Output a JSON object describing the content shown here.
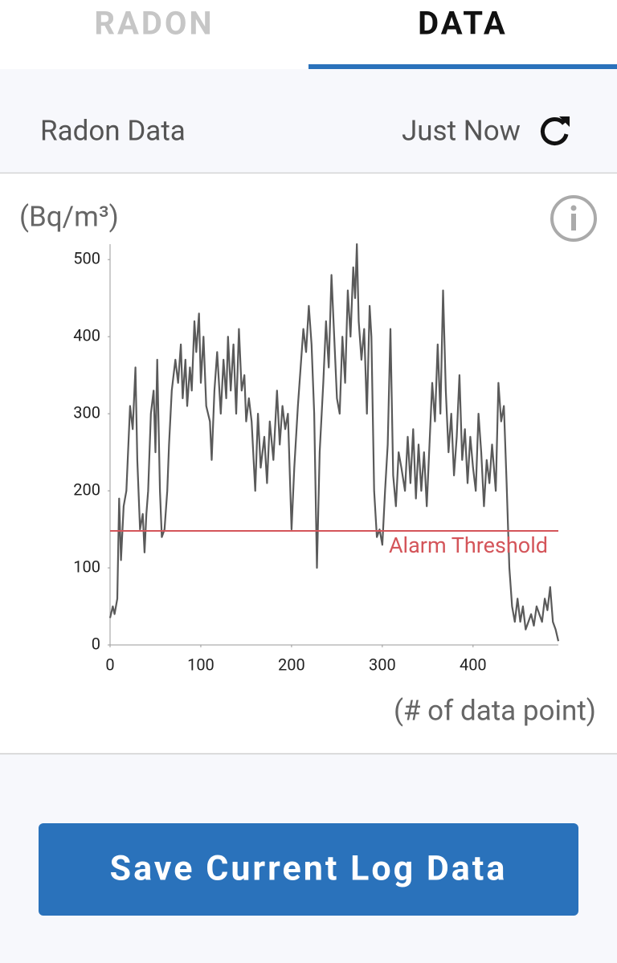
{
  "tabs": [
    "RADON",
    "DATA"
  ],
  "header": {
    "title": "Radon Data",
    "updated": "Just Now"
  },
  "chart_data": {
    "type": "line",
    "y_label": "(Bq/m³)",
    "x_label": "(# of data point)",
    "x": [
      0,
      3,
      5,
      8,
      10,
      12,
      15,
      18,
      22,
      25,
      28,
      30,
      33,
      36,
      38,
      40,
      42,
      45,
      48,
      50,
      52,
      55,
      57,
      60,
      63,
      65,
      68,
      72,
      75,
      78,
      80,
      83,
      85,
      88,
      90,
      93,
      95,
      98,
      100,
      103,
      106,
      110,
      112,
      115,
      118,
      122,
      125,
      128,
      130,
      133,
      136,
      139,
      142,
      145,
      148,
      150,
      153,
      156,
      160,
      163,
      166,
      170,
      173,
      176,
      180,
      184,
      187,
      190,
      193,
      196,
      200,
      203,
      207,
      210,
      213,
      216,
      219,
      222,
      225,
      228,
      231,
      235,
      238,
      241,
      244,
      247,
      250,
      253,
      256,
      259,
      262,
      265,
      268,
      270,
      272,
      274,
      277,
      280,
      283,
      286,
      288,
      291,
      294,
      297,
      300,
      303,
      306,
      309,
      312,
      315,
      318,
      321,
      325,
      328,
      331,
      334,
      337,
      340,
      343,
      346,
      349,
      352,
      355,
      358,
      361,
      364,
      367,
      370,
      373,
      376,
      379,
      382,
      385,
      388,
      391,
      394,
      397,
      400,
      403,
      406,
      409,
      412,
      415,
      418,
      421,
      425,
      428,
      431,
      434,
      437,
      440,
      443,
      446,
      449,
      452,
      455,
      458,
      461,
      464,
      467,
      470,
      473,
      476,
      479,
      482,
      485,
      488,
      491,
      494
    ],
    "series": [
      {
        "name": "Radon",
        "color": "#5a5a5a",
        "values": [
          35,
          50,
          40,
          60,
          190,
          110,
          180,
          200,
          310,
          280,
          360,
          240,
          150,
          170,
          120,
          170,
          200,
          300,
          330,
          250,
          370,
          200,
          140,
          150,
          200,
          260,
          330,
          370,
          340,
          390,
          320,
          370,
          310,
          360,
          330,
          420,
          380,
          430,
          340,
          400,
          310,
          290,
          240,
          330,
          380,
          300,
          370,
          320,
          400,
          330,
          390,
          300,
          410,
          330,
          350,
          290,
          320,
          290,
          200,
          300,
          230,
          270,
          210,
          290,
          240,
          330,
          260,
          310,
          280,
          300,
          150,
          230,
          310,
          360,
          410,
          380,
          440,
          390,
          300,
          100,
          250,
          340,
          420,
          360,
          480,
          400,
          320,
          300,
          400,
          340,
          460,
          400,
          490,
          450,
          520,
          420,
          370,
          410,
          300,
          440,
          400,
          200,
          140,
          150,
          130,
          200,
          260,
          410,
          220,
          180,
          250,
          230,
          200,
          270,
          210,
          280,
          190,
          260,
          200,
          250,
          180,
          260,
          340,
          290,
          390,
          300,
          460,
          330,
          250,
          300,
          220,
          270,
          350,
          240,
          280,
          210,
          270,
          230,
          200,
          300,
          250,
          180,
          240,
          210,
          260,
          200,
          340,
          290,
          310,
          210,
          100,
          50,
          30,
          60,
          30,
          50,
          20,
          30,
          40,
          25,
          50,
          40,
          30,
          60,
          45,
          75,
          30,
          20,
          5
        ]
      }
    ],
    "threshold": {
      "value": 148,
      "label": "Alarm Threshold",
      "color": "#d4555a"
    },
    "xlim": [
      0,
      494
    ],
    "ylim": [
      0,
      520
    ],
    "xticks": [
      0,
      100,
      200,
      300,
      400
    ],
    "yticks": [
      0,
      100,
      200,
      300,
      400,
      500
    ]
  },
  "button": "Save Current Log Data"
}
